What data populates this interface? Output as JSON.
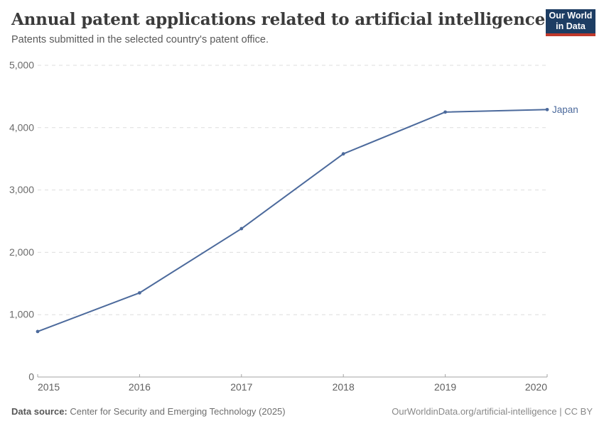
{
  "header": {
    "title": "Annual patent applications related to artificial intelligence",
    "subtitle": "Patents submitted in the selected country's patent office.",
    "logo": {
      "line1": "Our World",
      "line2": "in Data"
    }
  },
  "chart_data": {
    "type": "line",
    "title": "Annual patent applications related to artificial intelligence",
    "subtitle": "Patents submitted in the selected country's patent office.",
    "x": [
      2015,
      2016,
      2017,
      2018,
      2019,
      2020
    ],
    "xtick_labels": [
      "2015",
      "2016",
      "2017",
      "2018",
      "2019",
      "2020"
    ],
    "xlim": [
      2015,
      2020
    ],
    "ylim": [
      0,
      5000
    ],
    "yticks": [
      0,
      1000,
      2000,
      3000,
      4000,
      5000
    ],
    "ytick_labels": [
      "0",
      "1,000",
      "2,000",
      "3,000",
      "4,000",
      "5,000"
    ],
    "xlabel": "",
    "ylabel": "",
    "grid": "horizontal-dashed",
    "legend_position": "end-of-line-label",
    "series": [
      {
        "name": "Japan",
        "color": "#4C6A9C",
        "values": [
          730,
          1350,
          2380,
          3580,
          4250,
          4290
        ]
      }
    ]
  },
  "footer": {
    "source_label": "Data source:",
    "source_text": " Center for Security and Emerging Technology (2025)",
    "link_text": "OurWorldinData.org/artificial-intelligence | CC BY"
  },
  "colors": {
    "line": "#4C6A9C",
    "gridline": "#dedede",
    "axis": "#a3a3a3",
    "y_tick_label": "#6b6b6b",
    "x_tick_label": "#606060",
    "title": "#3b3b3b",
    "subtitle": "#5a5a5a",
    "logo_bg": "#1d3d63",
    "logo_accent": "#c0392b"
  }
}
